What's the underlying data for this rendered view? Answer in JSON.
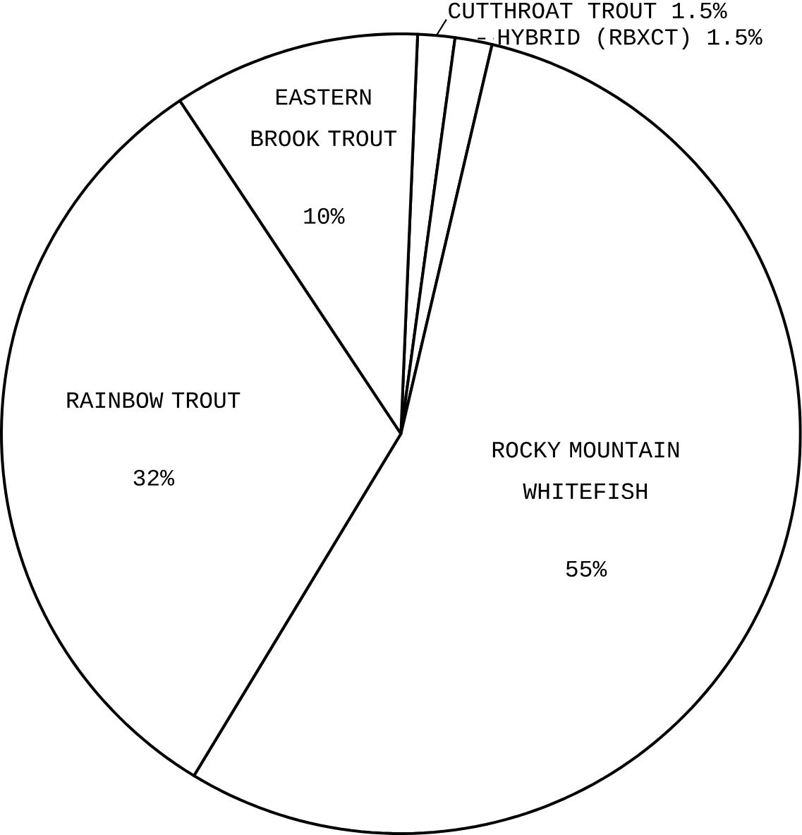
{
  "chart_data": {
    "type": "pie",
    "categories": [
      "CUTTHROAT TROUT",
      "HYBRID (RBXCT)",
      "ROCKY MOUNTAIN WHITEFISH",
      "RAINBOW TROUT",
      "EASTERN BROOK TROUT"
    ],
    "values": [
      1.5,
      1.5,
      55,
      32,
      10
    ],
    "colors": [
      "#ffffff",
      "#ffffff",
      "#ffffff",
      "#ffffff",
      "#ffffff"
    ],
    "value_labels": [
      "1.5%",
      "1.5%",
      "55%",
      "32%",
      "10%"
    ]
  }
}
